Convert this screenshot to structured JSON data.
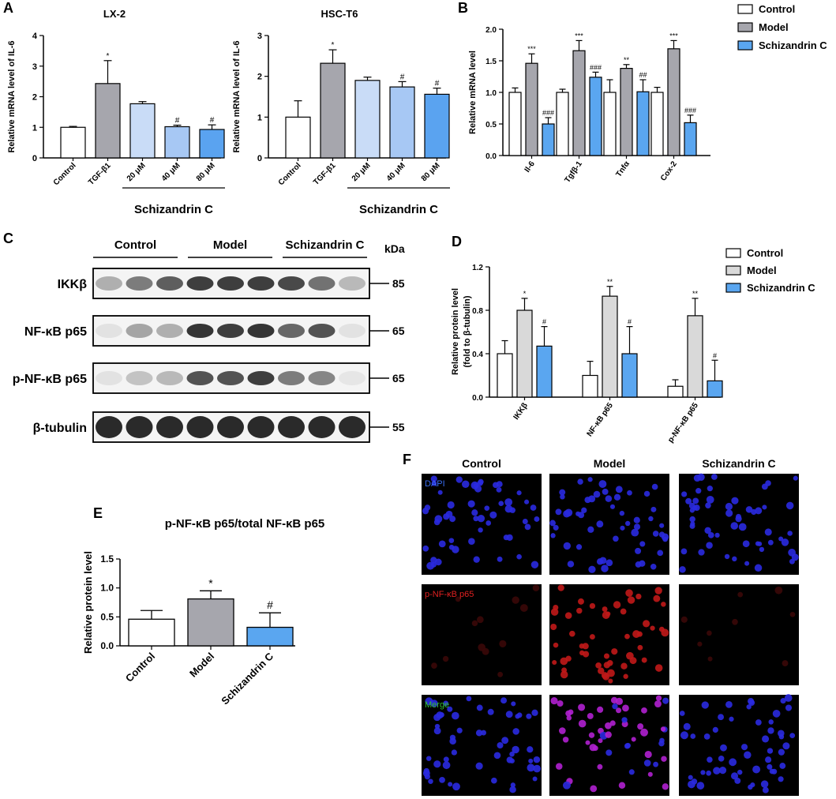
{
  "panel_letters": {
    "A": "A",
    "B": "B",
    "C": "C",
    "D": "D",
    "E": "E",
    "F": "F"
  },
  "colors": {
    "control": "#ffffff",
    "model_dark": "#a6a6ad",
    "model_light": "#d9d9d9",
    "s20": "#c9dcf7",
    "s40": "#a7c8f4",
    "s80": "#5aa3f0",
    "schizandrin": "#5aa6f0"
  },
  "panelC": {
    "groups": [
      "Control",
      "Model",
      "Schizandrin C"
    ],
    "kda_label": "kDa",
    "blots": [
      {
        "label": "IKKβ",
        "kda": "85",
        "intensities": [
          0.3,
          0.55,
          0.7,
          0.85,
          0.85,
          0.85,
          0.8,
          0.6,
          0.25
        ]
      },
      {
        "label": "NF-κB p65",
        "kda": "65",
        "intensities": [
          0.05,
          0.35,
          0.3,
          0.9,
          0.85,
          0.9,
          0.65,
          0.75,
          0.05
        ]
      },
      {
        "label": "p-NF-κB p65",
        "kda": "65",
        "intensities": [
          0.05,
          0.2,
          0.25,
          0.75,
          0.75,
          0.85,
          0.55,
          0.5,
          0.03
        ]
      },
      {
        "label": "β-tubulin",
        "kda": "55",
        "intensities": [
          0.95,
          0.95,
          0.95,
          0.95,
          0.95,
          0.95,
          0.95,
          0.95,
          0.95
        ]
      }
    ]
  },
  "panelF": {
    "columns": [
      "Control",
      "Model",
      "Schizandrin C"
    ],
    "rows": [
      {
        "label": "DAPI",
        "label_color": "#3a6df0"
      },
      {
        "label": "p-NF-κB p65",
        "label_color": "#e02020"
      },
      {
        "label": "Merge",
        "label_color": "#30c030"
      }
    ]
  },
  "chart_data": [
    {
      "id": "A1",
      "type": "bar",
      "title": "LX-2",
      "ylabel": "Relative mRNA level of IL-6",
      "ylim": [
        0,
        4
      ],
      "yticks": [
        "0",
        "1",
        "2",
        "3",
        "4"
      ],
      "categories": [
        "Control",
        "TGF-β1",
        "20 μM",
        "40 μM",
        "80 μM"
      ],
      "values": [
        1.0,
        2.43,
        1.77,
        1.02,
        0.93
      ],
      "errors": [
        0.03,
        0.75,
        0.07,
        0.05,
        0.15
      ],
      "annotations": [
        "",
        "*",
        "",
        "#",
        "#"
      ],
      "group_label": "Schizandrin C"
    },
    {
      "id": "A2",
      "type": "bar",
      "title": "HSC-T6",
      "ylabel": "Relative mRNA level of IL-6",
      "ylim": [
        0,
        3
      ],
      "yticks": [
        "0",
        "1",
        "2",
        "3"
      ],
      "categories": [
        "Control",
        "TGF-β1",
        "20 μM",
        "40 μM",
        "80 μM"
      ],
      "values": [
        1.0,
        2.32,
        1.9,
        1.74,
        1.56
      ],
      "errors": [
        0.4,
        0.33,
        0.08,
        0.13,
        0.15
      ],
      "annotations": [
        "",
        "*",
        "",
        "#",
        "#"
      ],
      "group_label": "Schizandrin C"
    },
    {
      "id": "B",
      "type": "bar",
      "ylabel": "Relative mRNA level",
      "ylim": [
        0,
        2
      ],
      "yticks": [
        "0.0",
        "0.5",
        "1.0",
        "1.5",
        "2.0"
      ],
      "categories": [
        "Il-6",
        "Tgfβ-1",
        "Tnfα",
        "Cox-2"
      ],
      "series": [
        {
          "name": "Control",
          "values": [
            1.0,
            1.0,
            1.0,
            1.0
          ],
          "errors": [
            0.07,
            0.05,
            0.2,
            0.08
          ],
          "annotations": [
            "",
            "",
            "",
            ""
          ]
        },
        {
          "name": "Model",
          "values": [
            1.46,
            1.66,
            1.38,
            1.69
          ],
          "errors": [
            0.15,
            0.16,
            0.06,
            0.13
          ],
          "annotations": [
            "***",
            "***",
            "**",
            "***"
          ]
        },
        {
          "name": "Schizandrin C",
          "values": [
            0.5,
            1.24,
            1.01,
            0.52
          ],
          "errors": [
            0.1,
            0.08,
            0.19,
            0.12
          ],
          "annotations": [
            "###",
            "###",
            "##",
            "###"
          ]
        }
      ],
      "legend": "top-right"
    },
    {
      "id": "D",
      "type": "bar",
      "ylabel": "Relative protein level (fold to β-tubulin)",
      "ylabel_lines": [
        "Relative protein level",
        "(fold to β-tubulin)"
      ],
      "ylim": [
        0,
        1.2
      ],
      "yticks": [
        "0.0",
        "0.4",
        "0.8",
        "1.2"
      ],
      "categories": [
        "IKKβ",
        "NF-κB p65",
        "p-NF-κB p65"
      ],
      "series": [
        {
          "name": "Control",
          "values": [
            0.4,
            0.2,
            0.1
          ],
          "errors": [
            0.12,
            0.13,
            0.06
          ],
          "annotations": [
            "",
            "",
            ""
          ]
        },
        {
          "name": "Model",
          "values": [
            0.8,
            0.93,
            0.75
          ],
          "errors": [
            0.11,
            0.09,
            0.16
          ],
          "annotations": [
            "*",
            "**",
            "**"
          ]
        },
        {
          "name": "Schizandrin C",
          "values": [
            0.47,
            0.4,
            0.15
          ],
          "errors": [
            0.18,
            0.25,
            0.19
          ],
          "annotations": [
            "#",
            "#",
            "#"
          ]
        }
      ],
      "legend": "top-right"
    },
    {
      "id": "E",
      "type": "bar",
      "title": "p-NF-κB p65/total NF-κB p65",
      "ylabel": "Relative protein level",
      "ylim": [
        0,
        1.5
      ],
      "yticks": [
        "0.0",
        "0.5",
        "1.0",
        "1.5"
      ],
      "categories": [
        "Control",
        "Model",
        "Schizandrin C"
      ],
      "values": [
        0.46,
        0.81,
        0.32
      ],
      "errors": [
        0.15,
        0.14,
        0.25
      ],
      "annotations": [
        "",
        "*",
        "#"
      ]
    }
  ]
}
